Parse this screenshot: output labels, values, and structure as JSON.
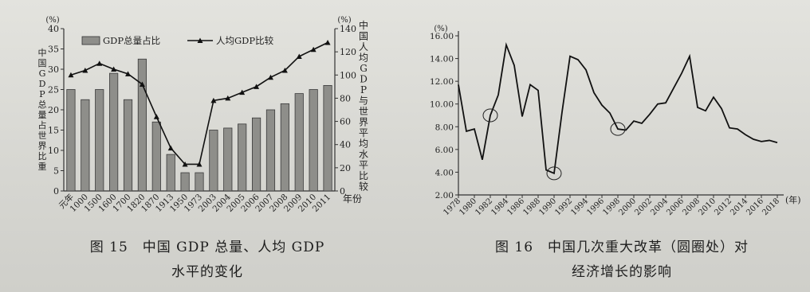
{
  "chart_data": [
    {
      "type": "bar+line",
      "categories": [
        "元年",
        "1000",
        "1500",
        "1600",
        "1700",
        "1820",
        "1870",
        "1913",
        "1950",
        "1973",
        "2003",
        "2004",
        "2005",
        "2006",
        "2007",
        "2008",
        "2009",
        "2010",
        "2011"
      ],
      "series": [
        {
          "name": "GDP总量占比",
          "type": "bar",
          "axis": "left",
          "values": [
            25,
            22.5,
            25,
            29,
            22.5,
            32.5,
            17,
            9,
            4.5,
            4.5,
            15,
            15.5,
            16.5,
            18,
            20,
            21.5,
            24,
            25,
            26
          ]
        },
        {
          "name": "人均GDP比较",
          "type": "line",
          "axis": "right",
          "values": [
            100,
            104,
            110,
            105,
            101,
            92,
            64,
            37,
            23,
            23,
            78,
            80,
            85,
            90,
            98,
            104,
            116,
            122,
            128
          ]
        }
      ],
      "left_axis": {
        "unit": "(%)",
        "ylim": [
          0,
          40
        ],
        "ticks": [
          0,
          5,
          10,
          15,
          20,
          25,
          30,
          35,
          40
        ],
        "label": "中国GDP总量占世界比重"
      },
      "right_axis": {
        "unit": "(%)",
        "ylim": [
          0,
          140
        ],
        "ticks": [
          0,
          20,
          40,
          60,
          80,
          100,
          120,
          140
        ],
        "label": "中国人均GDP与世界平均水平比较"
      },
      "xlabel": "年份",
      "legend": [
        "GDP总量占比",
        "人均GDP比较"
      ],
      "caption_line1": "图 15　中国 GDP 总量、人均 GDP",
      "caption_line2": "水平的变化"
    },
    {
      "type": "line",
      "x": [
        1978,
        1979,
        1980,
        1981,
        1982,
        1983,
        1984,
        1985,
        1986,
        1987,
        1988,
        1989,
        1990,
        1991,
        1992,
        1993,
        1994,
        1995,
        1996,
        1997,
        1998,
        1999,
        2000,
        2001,
        2002,
        2003,
        2004,
        2005,
        2006,
        2007,
        2008,
        2009,
        2010,
        2011,
        2012,
        2013,
        2014,
        2015,
        2016,
        2017,
        2018
      ],
      "series": [
        {
          "name": "",
          "values": [
            11.7,
            7.6,
            7.8,
            5.1,
            9.0,
            10.8,
            15.2,
            13.4,
            8.9,
            11.7,
            11.2,
            4.2,
            3.9,
            9.3,
            14.2,
            13.9,
            13.0,
            11.0,
            9.9,
            9.2,
            7.8,
            7.7,
            8.5,
            8.3,
            9.1,
            10.0,
            10.1,
            11.4,
            12.7,
            14.2,
            9.7,
            9.4,
            10.6,
            9.6,
            7.9,
            7.8,
            7.3,
            6.9,
            6.7,
            6.8,
            6.6
          ]
        }
      ],
      "circled_years": [
        1982,
        1990,
        1998
      ],
      "ylim": [
        2,
        16
      ],
      "yticks": [
        "2.00",
        "4.00",
        "6.00",
        "8.00",
        "10.00",
        "12.00",
        "14.00",
        "16.00"
      ],
      "xticks": [
        "1978",
        "1980",
        "1982",
        "1984",
        "1986",
        "1988",
        "1990",
        "1992",
        "1994",
        "1996",
        "1998",
        "2000",
        "2002",
        "2004",
        "2006",
        "2008",
        "2010",
        "2012",
        "2014",
        "2016",
        "2018"
      ],
      "y_unit": "(%)",
      "ylabel": "中国GDP增速",
      "x_unit": "(年)",
      "caption_line1": "图 16　中国几次重大改革（圆圈处）对",
      "caption_line2": "经济增长的影响"
    }
  ]
}
